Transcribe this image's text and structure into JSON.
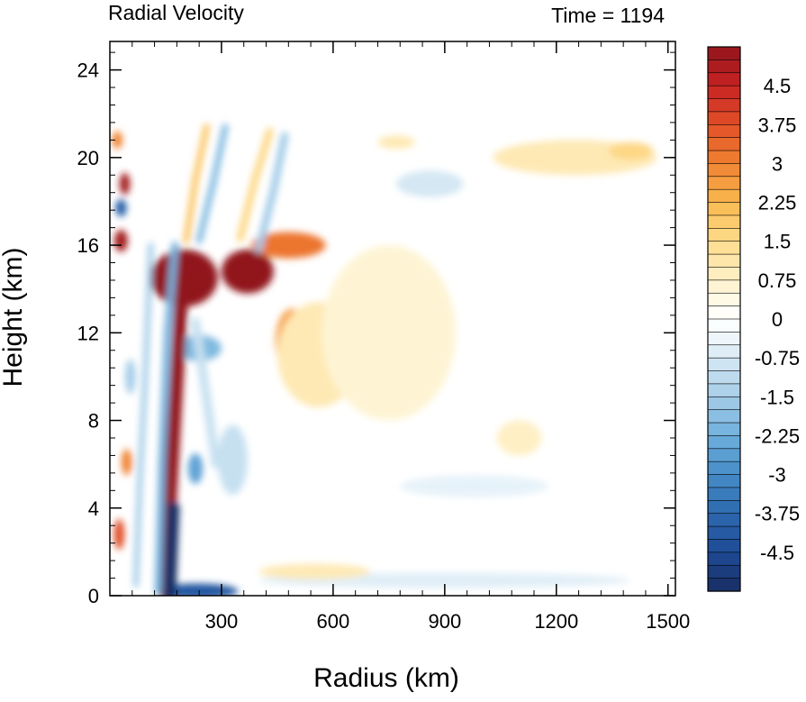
{
  "chart_data": {
    "type": "heatmap",
    "title_left": "Radial Velocity",
    "title_right": "Time = 1194",
    "xlabel": "Radius (km)",
    "ylabel": "Height (km)",
    "xlim": [
      0,
      1520
    ],
    "ylim": [
      0,
      25.3
    ],
    "xticks": [
      300,
      600,
      900,
      1200,
      1500
    ],
    "yticks": [
      0,
      4,
      8,
      12,
      16,
      20,
      24
    ],
    "colorbar": {
      "min": -5.25,
      "max": 5.25,
      "step": 0.25,
      "labels": [
        "4.5",
        "3.75",
        "3",
        "2.25",
        "1.5",
        "0.75",
        "0",
        "-0.75",
        "-1.5",
        "-2.25",
        "-3",
        "-3.75",
        "-4.5"
      ],
      "label_values": [
        4.5,
        3.75,
        3,
        2.25,
        1.5,
        0.75,
        0,
        -0.75,
        -1.5,
        -2.25,
        -3,
        -3.75,
        -4.5
      ]
    },
    "features": [
      {
        "x": 200,
        "y": 14.5,
        "rx": 90,
        "ry": 1.3,
        "value": 5.25
      },
      {
        "x": 370,
        "y": 14.8,
        "rx": 70,
        "ry": 1.0,
        "value": 5.25
      },
      {
        "x": 480,
        "y": 16.0,
        "rx": 100,
        "ry": 0.6,
        "value": 3.2
      },
      {
        "x": 490,
        "y": 11.6,
        "rx": 45,
        "ry": 1.5,
        "value": 2.6
      },
      {
        "x": 560,
        "y": 11.0,
        "rx": 110,
        "ry": 2.4,
        "value": 1.0
      },
      {
        "x": 750,
        "y": 12.0,
        "rx": 180,
        "ry": 4.0,
        "value": 0.6
      },
      {
        "x": 1250,
        "y": 20.0,
        "rx": 220,
        "ry": 0.8,
        "value": 1.0
      },
      {
        "x": 1400,
        "y": 20.3,
        "rx": 60,
        "ry": 0.4,
        "value": 1.6
      },
      {
        "x": 1100,
        "y": 7.2,
        "rx": 60,
        "ry": 0.8,
        "value": 0.8
      },
      {
        "x": 770,
        "y": 20.7,
        "rx": 50,
        "ry": 0.3,
        "value": 1.0
      },
      {
        "x": 20,
        "y": 20.8,
        "rx": 14,
        "ry": 0.4,
        "value": 3.0
      },
      {
        "x": 40,
        "y": 18.8,
        "rx": 14,
        "ry": 0.5,
        "value": 5.0
      },
      {
        "x": 30,
        "y": 17.7,
        "rx": 15,
        "ry": 0.4,
        "value": -4.0
      },
      {
        "x": 30,
        "y": 16.2,
        "rx": 18,
        "ry": 0.5,
        "value": 5.0
      },
      {
        "x": 25,
        "y": 2.8,
        "rx": 14,
        "ry": 0.7,
        "value": 3.8
      },
      {
        "x": 45,
        "y": 6.1,
        "rx": 14,
        "ry": 0.6,
        "value": 3.0
      },
      {
        "x": 55,
        "y": 10.0,
        "rx": 14,
        "ry": 0.8,
        "value": -1.5
      },
      {
        "x": 235,
        "y": 0.2,
        "rx": 110,
        "ry": 0.35,
        "value": -4.2
      },
      {
        "x": 240,
        "y": 11.3,
        "rx": 60,
        "ry": 0.6,
        "value": -2.0
      },
      {
        "x": 230,
        "y": 5.8,
        "rx": 20,
        "ry": 0.7,
        "value": -2.5
      },
      {
        "x": 330,
        "y": 6.2,
        "rx": 40,
        "ry": 1.6,
        "value": -1.0
      },
      {
        "x": 900,
        "y": 0.7,
        "rx": 500,
        "ry": 0.35,
        "value": -0.6
      },
      {
        "x": 860,
        "y": 18.8,
        "rx": 90,
        "ry": 0.6,
        "value": -0.8
      },
      {
        "x": 980,
        "y": 5.0,
        "rx": 200,
        "ry": 0.5,
        "value": -0.5
      },
      {
        "x": 550,
        "y": 1.1,
        "rx": 150,
        "ry": 0.35,
        "value": 1.0
      }
    ],
    "streaks": [
      {
        "points": [
          [
            145,
            0.2
          ],
          [
            160,
            4
          ],
          [
            180,
            10
          ],
          [
            195,
            14.5
          ]
        ],
        "width": 15,
        "value": 5.25
      },
      {
        "points": [
          [
            160,
            0.0
          ],
          [
            165,
            2
          ],
          [
            170,
            4
          ]
        ],
        "width": 14,
        "value": -5.25
      },
      {
        "points": [
          [
            130,
            0.2
          ],
          [
            140,
            6
          ],
          [
            155,
            12
          ],
          [
            175,
            16
          ]
        ],
        "width": 8,
        "value": -2.2
      },
      {
        "points": [
          [
            205,
            16.2
          ],
          [
            230,
            19
          ],
          [
            260,
            21.4
          ]
        ],
        "width": 7,
        "value": 2.0
      },
      {
        "points": [
          [
            240,
            16.2
          ],
          [
            280,
            19
          ],
          [
            310,
            21.4
          ]
        ],
        "width": 7,
        "value": -2.0
      },
      {
        "points": [
          [
            350,
            16.3
          ],
          [
            390,
            19
          ],
          [
            430,
            21.2
          ]
        ],
        "width": 8,
        "value": 1.6
      },
      {
        "points": [
          [
            400,
            15.8
          ],
          [
            440,
            18.5
          ],
          [
            470,
            21.0
          ]
        ],
        "width": 8,
        "value": -1.6
      },
      {
        "points": [
          [
            230,
            12.5
          ],
          [
            260,
            9
          ],
          [
            285,
            6
          ]
        ],
        "width": 10,
        "value": -1.0
      },
      {
        "points": [
          [
            70,
            0.5
          ],
          [
            80,
            5
          ],
          [
            95,
            10
          ],
          [
            110,
            16
          ]
        ],
        "width": 6,
        "value": -1.6
      }
    ]
  }
}
